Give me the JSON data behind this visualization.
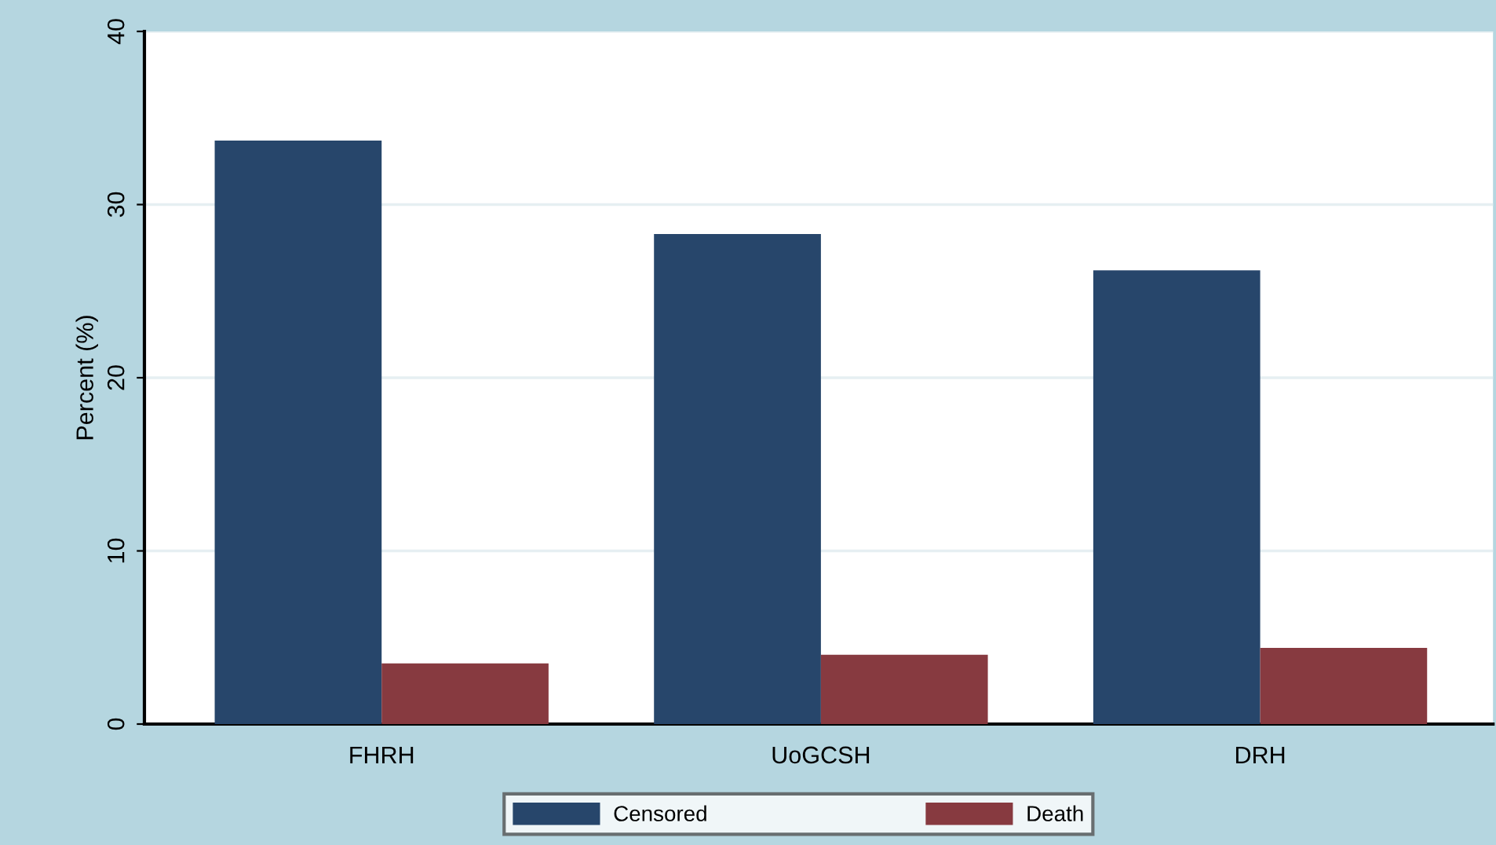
{
  "chart_data": {
    "type": "bar",
    "ylabel": "Percent (%)",
    "categories": [
      "FHRH",
      "UoGCSH",
      "DRH"
    ],
    "series": [
      {
        "name": "Censored",
        "color": "#27466b",
        "values": [
          33.7,
          28.3,
          26.2
        ]
      },
      {
        "name": "Death",
        "color": "#873a40",
        "values": [
          3.5,
          4.0,
          4.4
        ]
      }
    ],
    "ylim": [
      0,
      40
    ],
    "yticks": [
      0,
      10,
      20,
      30,
      40
    ],
    "grid": "y",
    "legend": "bottom"
  }
}
